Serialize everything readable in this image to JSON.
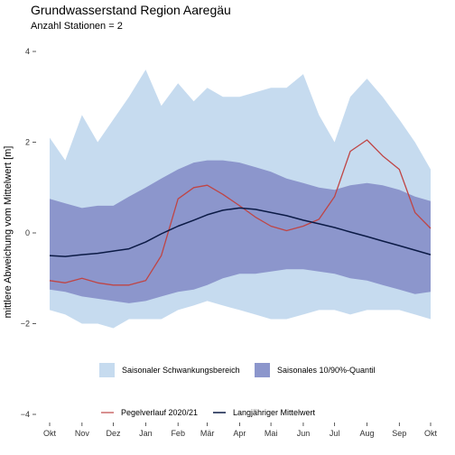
{
  "chart_data": {
    "type": "area",
    "title": "Grundwasserstand Region Aaregäu",
    "subtitle": "Anzahl Stationen = 2",
    "xlabel": "",
    "ylabel": "mittlere Abweichung vom Mittelwert [m]",
    "ylim": [
      -4,
      4
    ],
    "yticks": [
      -4,
      -2,
      0,
      2,
      4
    ],
    "grid": false,
    "legend_position": "bottom",
    "month_labels": [
      "Okt",
      "Nov",
      "Dez",
      "Jan",
      "Feb",
      "Mär",
      "Apr",
      "Mai",
      "Jun",
      "Jul",
      "Aug",
      "Sep",
      "Okt"
    ],
    "x_points": [
      "2020-10-01",
      "2020-10-16",
      "2020-11-01",
      "2020-11-16",
      "2020-12-01",
      "2020-12-16",
      "2021-01-01",
      "2021-01-16",
      "2021-02-01",
      "2021-02-16",
      "2021-03-01",
      "2021-03-16",
      "2021-04-01",
      "2021-04-16",
      "2021-05-01",
      "2021-05-16",
      "2021-06-01",
      "2021-06-16",
      "2021-07-01",
      "2021-07-16",
      "2021-08-01",
      "2021-08-16",
      "2021-09-01",
      "2021-09-16",
      "2021-10-01"
    ],
    "series": [
      {
        "name": "Saisonaler Schwankungsbereich",
        "kind": "band",
        "color": "#c6dbef",
        "upper": [
          2.1,
          1.6,
          2.6,
          2.0,
          2.5,
          3.0,
          3.6,
          2.8,
          3.3,
          2.9,
          3.2,
          3.0,
          3.0,
          3.1,
          3.2,
          3.2,
          3.5,
          2.6,
          2.0,
          3.0,
          3.4,
          3.0,
          2.5,
          2.0,
          1.4
        ],
        "lower": [
          -1.7,
          -1.8,
          -2.0,
          -2.0,
          -2.1,
          -1.9,
          -1.9,
          -1.9,
          -1.7,
          -1.6,
          -1.5,
          -1.6,
          -1.7,
          -1.8,
          -1.9,
          -1.9,
          -1.8,
          -1.7,
          -1.7,
          -1.8,
          -1.7,
          -1.7,
          -1.7,
          -1.8,
          -1.9
        ]
      },
      {
        "name": "Saisonales 10/90%-Quantil",
        "kind": "band",
        "color": "#8c96cc",
        "upper": [
          0.75,
          0.65,
          0.55,
          0.6,
          0.6,
          0.8,
          1.0,
          1.2,
          1.4,
          1.55,
          1.6,
          1.6,
          1.55,
          1.45,
          1.35,
          1.2,
          1.1,
          1.0,
          0.95,
          1.05,
          1.1,
          1.05,
          0.95,
          0.8,
          0.7
        ],
        "lower": [
          -1.25,
          -1.3,
          -1.4,
          -1.45,
          -1.5,
          -1.55,
          -1.5,
          -1.4,
          -1.3,
          -1.25,
          -1.15,
          -1.0,
          -0.9,
          -0.9,
          -0.85,
          -0.8,
          -0.8,
          -0.85,
          -0.9,
          -1.0,
          -1.05,
          -1.15,
          -1.25,
          -1.35,
          -1.3
        ]
      },
      {
        "name": "Pegelverlauf  2020/21",
        "kind": "line",
        "color": "#bf4545",
        "values": [
          -1.05,
          -1.1,
          -1.0,
          -1.1,
          -1.15,
          -1.15,
          -1.05,
          -0.5,
          0.75,
          1.0,
          1.05,
          0.85,
          0.6,
          0.35,
          0.15,
          0.05,
          0.15,
          0.3,
          0.8,
          1.8,
          2.05,
          1.7,
          1.4,
          0.45,
          0.1
        ]
      },
      {
        "name": "Langjähriger Mittelwert",
        "kind": "line",
        "color": "#0b1a45",
        "values": [
          -0.5,
          -0.52,
          -0.48,
          -0.45,
          -0.4,
          -0.35,
          -0.2,
          -0.02,
          0.15,
          0.28,
          0.4,
          0.5,
          0.55,
          0.52,
          0.45,
          0.38,
          0.28,
          0.2,
          0.12,
          0.02,
          -0.08,
          -0.18,
          -0.28,
          -0.38,
          -0.48
        ]
      }
    ]
  }
}
